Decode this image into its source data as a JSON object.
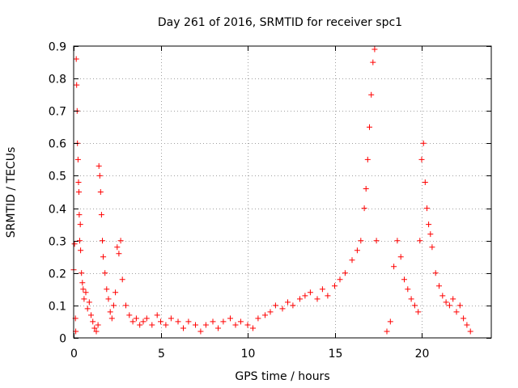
{
  "chart_data": {
    "type": "scatter",
    "title": "Day 261 of 2016, SRMTID for receiver spc1",
    "xlabel": "GPS time / hours",
    "ylabel": "SRMTID / TECUs",
    "xlim": [
      0,
      24
    ],
    "ylim": [
      0,
      0.9
    ],
    "xticks": [
      0,
      5,
      10,
      15,
      20
    ],
    "yticks": [
      0,
      0.1,
      0.2,
      0.3,
      0.4,
      0.5,
      0.6,
      0.7,
      0.8,
      0.9
    ],
    "xtick_labels": [
      "0",
      "5",
      "10",
      "15",
      "20"
    ],
    "ytick_labels": [
      "0",
      "0.1",
      "0.2",
      "0.3",
      "0.4",
      "0.5",
      "0.6",
      "0.7",
      "0.8",
      "0.9"
    ],
    "grid": true,
    "marker": "+",
    "color": "#ff0000",
    "series": [
      {
        "name": "SRMTID",
        "points": [
          [
            0.0,
            0.21
          ],
          [
            0.05,
            0.29
          ],
          [
            0.1,
            0.06
          ],
          [
            0.12,
            0.02
          ],
          [
            0.15,
            0.86
          ],
          [
            0.17,
            0.78
          ],
          [
            0.2,
            0.7
          ],
          [
            0.22,
            0.6
          ],
          [
            0.25,
            0.55
          ],
          [
            0.28,
            0.48
          ],
          [
            0.3,
            0.45
          ],
          [
            0.32,
            0.38
          ],
          [
            0.35,
            0.3
          ],
          [
            0.38,
            0.35
          ],
          [
            0.4,
            0.27
          ],
          [
            0.45,
            0.2
          ],
          [
            0.5,
            0.17
          ],
          [
            0.55,
            0.15
          ],
          [
            0.6,
            0.12
          ],
          [
            0.7,
            0.14
          ],
          [
            0.8,
            0.09
          ],
          [
            0.9,
            0.11
          ],
          [
            1.0,
            0.07
          ],
          [
            1.1,
            0.05
          ],
          [
            1.2,
            0.03
          ],
          [
            1.3,
            0.02
          ],
          [
            1.4,
            0.04
          ],
          [
            1.45,
            0.53
          ],
          [
            1.5,
            0.5
          ],
          [
            1.55,
            0.45
          ],
          [
            1.6,
            0.38
          ],
          [
            1.65,
            0.3
          ],
          [
            1.7,
            0.25
          ],
          [
            1.8,
            0.2
          ],
          [
            1.9,
            0.15
          ],
          [
            2.0,
            0.12
          ],
          [
            2.1,
            0.08
          ],
          [
            2.2,
            0.06
          ],
          [
            2.3,
            0.1
          ],
          [
            2.4,
            0.14
          ],
          [
            2.5,
            0.28
          ],
          [
            2.6,
            0.26
          ],
          [
            2.7,
            0.3
          ],
          [
            2.8,
            0.18
          ],
          [
            3.0,
            0.1
          ],
          [
            3.2,
            0.07
          ],
          [
            3.4,
            0.05
          ],
          [
            3.6,
            0.06
          ],
          [
            3.8,
            0.04
          ],
          [
            4.0,
            0.05
          ],
          [
            4.2,
            0.06
          ],
          [
            4.5,
            0.04
          ],
          [
            4.8,
            0.07
          ],
          [
            5.0,
            0.05
          ],
          [
            5.3,
            0.04
          ],
          [
            5.6,
            0.06
          ],
          [
            6.0,
            0.05
          ],
          [
            6.3,
            0.03
          ],
          [
            6.6,
            0.05
          ],
          [
            7.0,
            0.04
          ],
          [
            7.3,
            0.02
          ],
          [
            7.6,
            0.04
          ],
          [
            8.0,
            0.05
          ],
          [
            8.3,
            0.03
          ],
          [
            8.6,
            0.05
          ],
          [
            9.0,
            0.06
          ],
          [
            9.3,
            0.04
          ],
          [
            9.6,
            0.05
          ],
          [
            10.0,
            0.04
          ],
          [
            10.3,
            0.03
          ],
          [
            10.6,
            0.06
          ],
          [
            11.0,
            0.07
          ],
          [
            11.3,
            0.08
          ],
          [
            11.6,
            0.1
          ],
          [
            12.0,
            0.09
          ],
          [
            12.3,
            0.11
          ],
          [
            12.6,
            0.1
          ],
          [
            13.0,
            0.12
          ],
          [
            13.3,
            0.13
          ],
          [
            13.6,
            0.14
          ],
          [
            14.0,
            0.12
          ],
          [
            14.3,
            0.15
          ],
          [
            14.6,
            0.13
          ],
          [
            15.0,
            0.16
          ],
          [
            15.3,
            0.18
          ],
          [
            15.6,
            0.2
          ],
          [
            16.0,
            0.24
          ],
          [
            16.3,
            0.27
          ],
          [
            16.5,
            0.3
          ],
          [
            16.7,
            0.4
          ],
          [
            16.8,
            0.46
          ],
          [
            16.9,
            0.55
          ],
          [
            17.0,
            0.65
          ],
          [
            17.1,
            0.75
          ],
          [
            17.2,
            0.85
          ],
          [
            17.3,
            0.89
          ],
          [
            17.4,
            0.3
          ],
          [
            18.0,
            0.02
          ],
          [
            18.2,
            0.05
          ],
          [
            18.4,
            0.22
          ],
          [
            18.6,
            0.3
          ],
          [
            18.8,
            0.25
          ],
          [
            19.0,
            0.18
          ],
          [
            19.2,
            0.15
          ],
          [
            19.4,
            0.12
          ],
          [
            19.6,
            0.1
          ],
          [
            19.8,
            0.08
          ],
          [
            19.9,
            0.3
          ],
          [
            20.0,
            0.55
          ],
          [
            20.1,
            0.6
          ],
          [
            20.2,
            0.48
          ],
          [
            20.3,
            0.4
          ],
          [
            20.4,
            0.35
          ],
          [
            20.5,
            0.32
          ],
          [
            20.6,
            0.28
          ],
          [
            20.8,
            0.2
          ],
          [
            21.0,
            0.16
          ],
          [
            21.2,
            0.13
          ],
          [
            21.4,
            0.11
          ],
          [
            21.6,
            0.1
          ],
          [
            21.8,
            0.12
          ],
          [
            22.0,
            0.08
          ],
          [
            22.2,
            0.1
          ],
          [
            22.4,
            0.06
          ],
          [
            22.6,
            0.04
          ],
          [
            22.8,
            0.02
          ]
        ]
      }
    ]
  }
}
